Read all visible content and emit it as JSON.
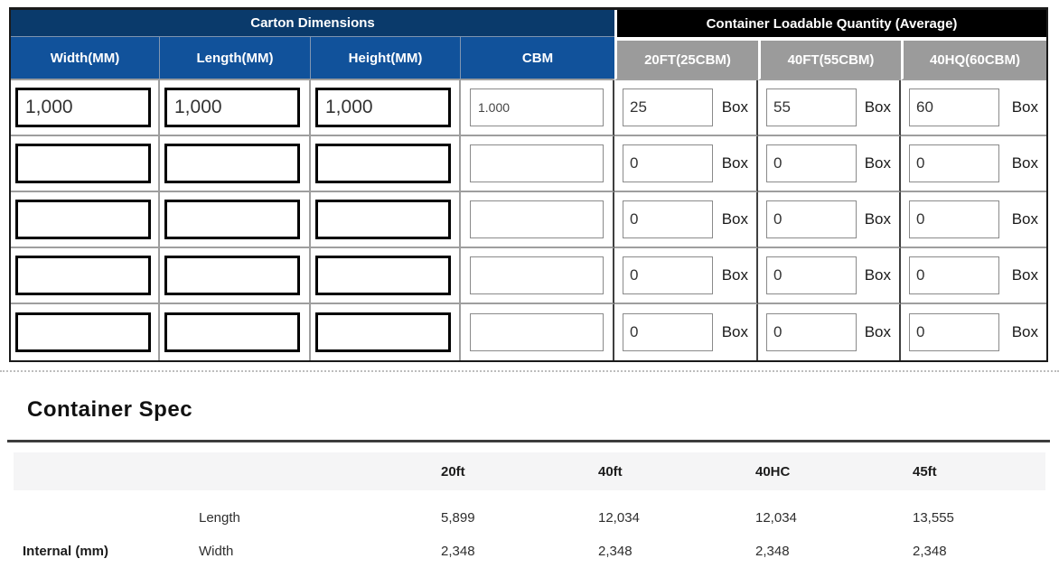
{
  "top_table": {
    "carton_header": "Carton Dimensions",
    "container_header": "Container Loadable Quantity (Average)",
    "columns": [
      "Width(MM)",
      "Length(MM)",
      "Height(MM)",
      "CBM",
      "20FT(25CBM)",
      "40FT(55CBM)",
      "40HQ(60CBM)"
    ],
    "unit_label": "Box",
    "rows": [
      {
        "width": "1,000",
        "length": "1,000",
        "height": "1,000",
        "cbm": "1.000",
        "qty_20ft": "25",
        "qty_40ft": "55",
        "qty_40hq": "60"
      },
      {
        "width": "",
        "length": "",
        "height": "",
        "cbm": "",
        "qty_20ft": "0",
        "qty_40ft": "0",
        "qty_40hq": "0"
      },
      {
        "width": "",
        "length": "",
        "height": "",
        "cbm": "",
        "qty_20ft": "0",
        "qty_40ft": "0",
        "qty_40hq": "0"
      },
      {
        "width": "",
        "length": "",
        "height": "",
        "cbm": "",
        "qty_20ft": "0",
        "qty_40ft": "0",
        "qty_40hq": "0"
      },
      {
        "width": "",
        "length": "",
        "height": "",
        "cbm": "",
        "qty_20ft": "0",
        "qty_40ft": "0",
        "qty_40hq": "0"
      }
    ]
  },
  "container_spec": {
    "title": "Container Spec",
    "columns": [
      "20ft",
      "40ft",
      "40HC",
      "45ft"
    ],
    "rows": [
      {
        "group": "",
        "label": "Length",
        "values": [
          "5,899",
          "12,034",
          "12,034",
          "13,555"
        ]
      },
      {
        "group": "Internal (mm)",
        "label": "Width",
        "values": [
          "2,348",
          "2,348",
          "2,348",
          "2,348"
        ]
      }
    ]
  },
  "colors": {
    "carton_header_bg": "#0a3a6b",
    "dimension_column_bg": "#11529b",
    "container_header_bg": "#000000",
    "container_column_bg": "#9b9b9b",
    "spec_header_bg": "#f5f5f6"
  }
}
